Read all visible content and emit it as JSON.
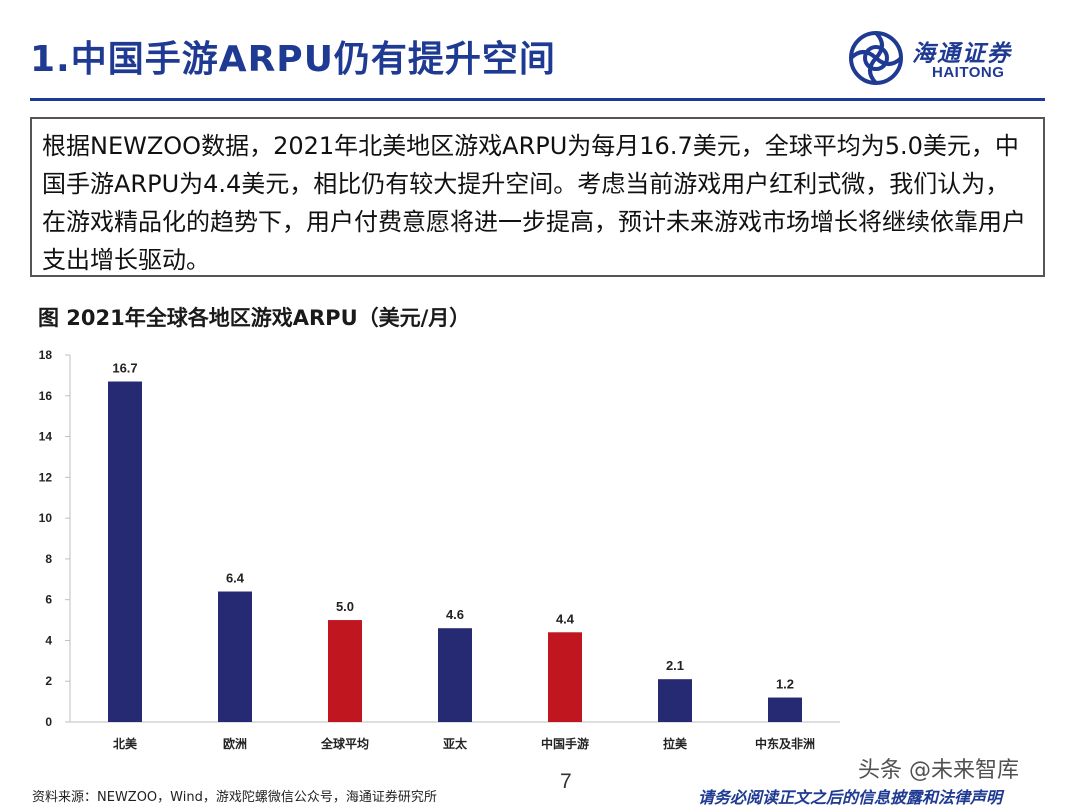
{
  "header": {
    "title": "1.中国手游ARPU仍有提升空间",
    "logo_cn": "海通证券",
    "logo_en": "HAITONG"
  },
  "summary": {
    "text": "根据NEWZOO数据，2021年北美地区游戏ARPU为每月16.7美元，全球平均为5.0美元，中国手游ARPU为4.4美元，相比仍有较大提升空间。考虑当前游戏用户红利式微，我们认为，在游戏精品化的趋势下，用户付费意愿将进一步提高，预计未来游戏市场增长将继续依靠用户支出增长驱动。"
  },
  "chart_data": {
    "type": "bar",
    "title": "图 2021年全球各地区游戏ARPU（美元/月）",
    "categories": [
      "北美",
      "欧洲",
      "全球平均",
      "亚太",
      "中国手游",
      "拉美",
      "中东及非洲"
    ],
    "values": [
      16.7,
      6.4,
      5.0,
      4.6,
      4.4,
      2.1,
      1.2
    ],
    "value_labels": [
      "16.7",
      "6.4",
      "5.0",
      "4.6",
      "4.4",
      "2.1",
      "1.2"
    ],
    "bar_colors": [
      "#262a73",
      "#262a73",
      "#c0161f",
      "#262a73",
      "#c0161f",
      "#262a73",
      "#262a73"
    ],
    "ylim": [
      0,
      18
    ],
    "yticks": [
      0,
      2,
      4,
      6,
      8,
      10,
      12,
      14,
      16,
      18
    ],
    "xlabel": "",
    "ylabel": "",
    "grid": false
  },
  "footer": {
    "source": "资料来源：NEWZOO，Wind，游戏陀螺微信公众号，海通证券研究所",
    "page_number": "7",
    "watermark": "头条 @未来智库",
    "legal": "请务必阅读正文之后的信息披露和法律声明"
  },
  "colors": {
    "brand_blue": "#1f3a93",
    "bar_navy": "#262a73",
    "bar_red": "#c0161f"
  }
}
